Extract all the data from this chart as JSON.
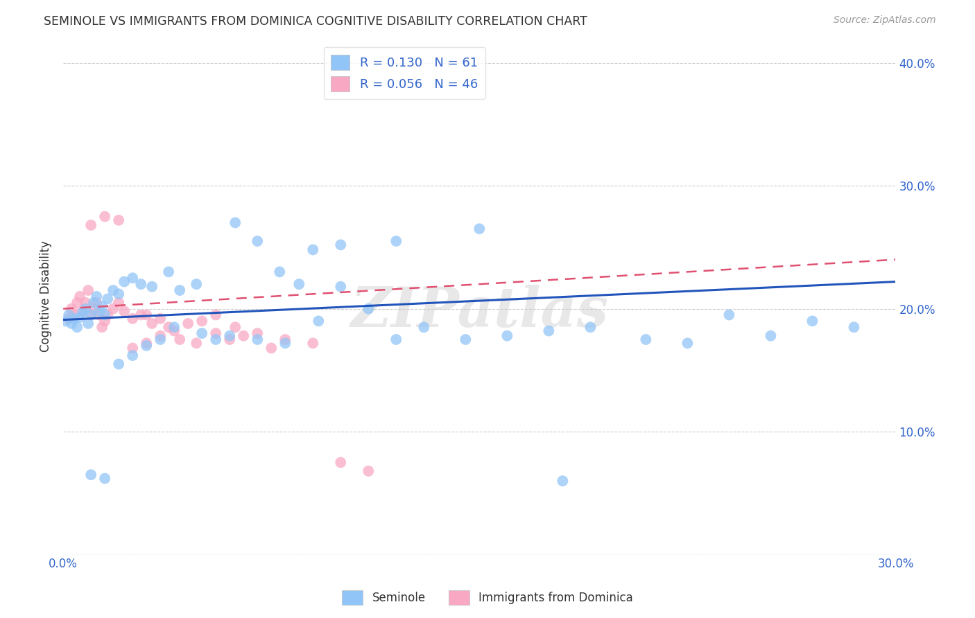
{
  "title": "SEMINOLE VS IMMIGRANTS FROM DOMINICA COGNITIVE DISABILITY CORRELATION CHART",
  "source": "Source: ZipAtlas.com",
  "ylabel": "Cognitive Disability",
  "watermark": "ZIPatlas",
  "xlim": [
    0.0,
    0.3
  ],
  "ylim": [
    0.0,
    0.42
  ],
  "xtick_positions": [
    0.0,
    0.05,
    0.1,
    0.15,
    0.2,
    0.25,
    0.3
  ],
  "xtick_labels": [
    "0.0%",
    "",
    "",
    "",
    "",
    "",
    "30.0%"
  ],
  "ytick_positions": [
    0.0,
    0.1,
    0.2,
    0.3,
    0.4
  ],
  "ytick_labels_right": [
    "",
    "10.0%",
    "20.0%",
    "30.0%",
    "40.0%"
  ],
  "seminole_R": 0.13,
  "seminole_N": 61,
  "dominica_R": 0.056,
  "dominica_N": 46,
  "seminole_color": "#92C5F7",
  "dominica_color": "#F9A8C4",
  "seminole_line_color": "#2255BB",
  "dominica_line_color": "#E05070",
  "legend_label_1": "Seminole",
  "legend_label_2": "Immigrants from Dominica",
  "seminole_x": [
    0.001,
    0.002,
    0.003,
    0.004,
    0.005,
    0.006,
    0.007,
    0.008,
    0.009,
    0.01,
    0.011,
    0.012,
    0.013,
    0.014,
    0.015,
    0.016,
    0.018,
    0.02,
    0.022,
    0.025,
    0.028,
    0.032,
    0.038,
    0.042,
    0.048,
    0.055,
    0.062,
    0.07,
    0.078,
    0.085,
    0.092,
    0.1,
    0.11,
    0.12,
    0.13,
    0.145,
    0.16,
    0.175,
    0.19,
    0.21,
    0.225,
    0.24,
    0.255,
    0.27,
    0.285,
    0.01,
    0.015,
    0.02,
    0.025,
    0.03,
    0.035,
    0.04,
    0.05,
    0.06,
    0.07,
    0.08,
    0.09,
    0.1,
    0.12,
    0.15,
    0.18
  ],
  "seminole_y": [
    0.19,
    0.195,
    0.188,
    0.192,
    0.185,
    0.193,
    0.197,
    0.2,
    0.188,
    0.195,
    0.205,
    0.21,
    0.198,
    0.202,
    0.195,
    0.208,
    0.215,
    0.212,
    0.222,
    0.225,
    0.22,
    0.218,
    0.23,
    0.215,
    0.22,
    0.175,
    0.27,
    0.255,
    0.23,
    0.22,
    0.19,
    0.218,
    0.2,
    0.175,
    0.185,
    0.175,
    0.178,
    0.182,
    0.185,
    0.175,
    0.172,
    0.195,
    0.178,
    0.19,
    0.185,
    0.065,
    0.062,
    0.155,
    0.162,
    0.17,
    0.175,
    0.185,
    0.18,
    0.178,
    0.175,
    0.172,
    0.248,
    0.252,
    0.255,
    0.265,
    0.06
  ],
  "dominica_x": [
    0.002,
    0.003,
    0.004,
    0.005,
    0.006,
    0.007,
    0.008,
    0.009,
    0.01,
    0.011,
    0.012,
    0.013,
    0.014,
    0.015,
    0.016,
    0.018,
    0.02,
    0.022,
    0.025,
    0.028,
    0.03,
    0.032,
    0.035,
    0.038,
    0.042,
    0.048,
    0.055,
    0.062,
    0.01,
    0.015,
    0.02,
    0.025,
    0.03,
    0.035,
    0.04,
    0.045,
    0.05,
    0.055,
    0.06,
    0.065,
    0.07,
    0.075,
    0.08,
    0.09,
    0.1,
    0.11
  ],
  "dominica_y": [
    0.192,
    0.2,
    0.195,
    0.205,
    0.21,
    0.198,
    0.205,
    0.215,
    0.195,
    0.2,
    0.205,
    0.195,
    0.185,
    0.19,
    0.195,
    0.2,
    0.205,
    0.198,
    0.192,
    0.195,
    0.195,
    0.188,
    0.192,
    0.185,
    0.175,
    0.172,
    0.18,
    0.185,
    0.268,
    0.275,
    0.272,
    0.168,
    0.172,
    0.178,
    0.182,
    0.188,
    0.19,
    0.195,
    0.175,
    0.178,
    0.18,
    0.168,
    0.175,
    0.172,
    0.075,
    0.068
  ],
  "seminole_line_x0": 0.0,
  "seminole_line_y0": 0.191,
  "seminole_line_x1": 0.3,
  "seminole_line_y1": 0.222,
  "dominica_line_x0": 0.0,
  "dominica_line_y0": 0.2,
  "dominica_line_x1": 0.3,
  "dominica_line_y1": 0.24
}
